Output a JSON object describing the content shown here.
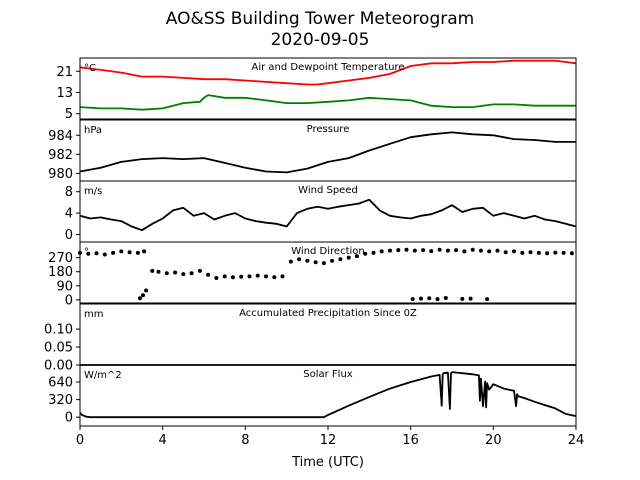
{
  "figure": {
    "title_line1": "AO&SS Building Tower Meteorogram",
    "title_line2": "2020-09-05",
    "xlabel": "Time (UTC)",
    "x_ticks": [
      "0",
      "4",
      "8",
      "12",
      "16",
      "20",
      "24"
    ],
    "xlim": [
      0,
      24
    ]
  },
  "chart_data": [
    {
      "type": "line",
      "title": "Air and Dewpoint Temperature",
      "unit_label": "°C",
      "ylim": [
        3,
        26
      ],
      "y_ticks": [
        5,
        13,
        21
      ],
      "series": [
        {
          "color": "#ff0000",
          "x": [
            0,
            0.5,
            1,
            2,
            3,
            4,
            5,
            6,
            7,
            8,
            9,
            10,
            11,
            11.5,
            12,
            13,
            14,
            15,
            16,
            17,
            18,
            19,
            20,
            21,
            22,
            23,
            23.5,
            24
          ],
          "y": [
            22.5,
            22,
            21.5,
            20.5,
            19,
            19,
            18.5,
            18,
            18,
            17.5,
            17,
            16.5,
            16,
            16,
            16.5,
            17.5,
            18.5,
            20,
            23,
            24,
            24,
            24.5,
            24.5,
            25,
            25,
            25,
            24.5,
            24
          ]
        },
        {
          "color": "#008000",
          "x": [
            0,
            1,
            2,
            3,
            4,
            5,
            5.8,
            6,
            6.2,
            7,
            8,
            9,
            10,
            11,
            12,
            13,
            14,
            15,
            16,
            17,
            18,
            19,
            20,
            21,
            22,
            23,
            24
          ],
          "y": [
            7.5,
            7,
            7,
            6.5,
            7,
            9,
            9.5,
            11,
            12,
            11,
            11,
            10,
            9,
            9,
            9.5,
            10,
            11,
            10.5,
            10,
            8,
            7.5,
            7.5,
            8.5,
            8.5,
            8,
            8,
            8
          ]
        }
      ]
    },
    {
      "type": "line",
      "title": "Pressure",
      "unit_label": "hPa",
      "ylim": [
        979.2,
        985.6
      ],
      "y_ticks": [
        980,
        982,
        984
      ],
      "series": [
        {
          "color": "#000000",
          "x": [
            0,
            1,
            2,
            3,
            4,
            5,
            6,
            7,
            8,
            9,
            10,
            11,
            12,
            13,
            14,
            15,
            16,
            17,
            18,
            19,
            20,
            21,
            22,
            23,
            24
          ],
          "y": [
            980.2,
            980.6,
            981.2,
            981.5,
            981.6,
            981.5,
            981.6,
            981.1,
            980.6,
            980.2,
            980.1,
            980.5,
            981.2,
            981.6,
            982.4,
            983.1,
            983.8,
            984.1,
            984.3,
            984.1,
            984,
            983.6,
            983.5,
            983.3,
            983.3
          ]
        }
      ]
    },
    {
      "type": "line",
      "title": "Wind Speed",
      "unit_label": "m/s",
      "ylim": [
        -1.4,
        10
      ],
      "y_ticks": [
        0,
        4,
        8
      ],
      "series": [
        {
          "color": "#000000",
          "x": [
            0,
            0.5,
            1,
            1.5,
            2,
            2.5,
            3,
            3.5,
            4,
            4.5,
            5,
            5.5,
            6,
            6.5,
            7,
            7.5,
            8,
            8.5,
            9,
            9.5,
            10,
            10.5,
            11,
            11.5,
            12,
            12.5,
            13,
            13.5,
            14,
            14.5,
            15,
            15.5,
            16,
            16.5,
            17,
            17.5,
            18,
            18.5,
            19,
            19.5,
            20,
            20.5,
            21,
            21.5,
            22,
            22.5,
            23,
            23.5,
            24
          ],
          "y": [
            3.5,
            3,
            3.2,
            2.8,
            2.5,
            1.5,
            0.8,
            2,
            3,
            4.5,
            5,
            3.5,
            4,
            2.8,
            3.5,
            4,
            3,
            2.5,
            2.2,
            2,
            1.5,
            4,
            4.8,
            5.2,
            4.8,
            5.2,
            5.5,
            5.8,
            6.5,
            4.5,
            3.5,
            3.2,
            3,
            3.5,
            3.8,
            4.5,
            5.5,
            4.2,
            4.8,
            5,
            3.5,
            4,
            3.5,
            3,
            3.5,
            2.8,
            2.5,
            2,
            1.5
          ]
        }
      ]
    },
    {
      "type": "scatter",
      "title": "Wind Direction",
      "unit_label": "°",
      "ylim": [
        -20,
        370
      ],
      "y_ticks": [
        0,
        90,
        180,
        270
      ],
      "series": [
        {
          "color": "#000000",
          "x": [
            0,
            0.4,
            0.8,
            1.2,
            1.6,
            2,
            2.4,
            2.8,
            3.1,
            3.5,
            3.8,
            4.2,
            4.6,
            5,
            5.4,
            5.8,
            6.2,
            6.6,
            7,
            7.4,
            7.8,
            8.2,
            8.6,
            9,
            9.4,
            9.8,
            10.2,
            10.6,
            11,
            11.4,
            11.8,
            12.2,
            12.6,
            13,
            13.4,
            13.8,
            14.2,
            14.6,
            15,
            15.4,
            15.8,
            16.2,
            16.6,
            17,
            17.4,
            17.8,
            18.2,
            18.6,
            19,
            19.4,
            19.8,
            20.2,
            20.6,
            21,
            21.4,
            21.8,
            22.2,
            22.6,
            23,
            23.4,
            23.8,
            2.9,
            3.05,
            3.2,
            16.1,
            16.5,
            16.9,
            17.3,
            17.7,
            18.5,
            18.9,
            19.7
          ],
          "y": [
            300,
            295,
            298,
            290,
            300,
            310,
            305,
            300,
            310,
            185,
            180,
            170,
            175,
            165,
            170,
            185,
            160,
            140,
            150,
            145,
            148,
            150,
            155,
            150,
            145,
            150,
            245,
            260,
            250,
            240,
            235,
            250,
            260,
            270,
            280,
            295,
            300,
            310,
            315,
            318,
            320,
            315,
            318,
            312,
            320,
            315,
            318,
            310,
            320,
            315,
            310,
            315,
            305,
            310,
            300,
            305,
            300,
            298,
            302,
            300,
            298,
            10,
            30,
            60,
            5,
            8,
            10,
            5,
            12,
            6,
            8,
            5
          ]
        }
      ]
    },
    {
      "type": "line",
      "title": "Accumulated Precipitation Since 0Z",
      "unit_label": "mm",
      "ylim": [
        0,
        0.17
      ],
      "y_ticks": [
        0.0,
        0.05,
        0.1
      ],
      "y_tick_labels": [
        "0.00",
        "0.05",
        "0.10"
      ],
      "series": [
        {
          "color": "#000000",
          "x": [
            0,
            24
          ],
          "y": [
            0,
            0
          ]
        }
      ]
    },
    {
      "type": "line",
      "title": "Solar Flux",
      "unit_label": "W/m^2",
      "ylim": [
        -160,
        950
      ],
      "y_ticks": [
        0,
        320,
        640
      ],
      "series": [
        {
          "color": "#000000",
          "x": [
            0,
            0.1,
            0.3,
            0.5,
            1,
            2,
            4,
            6,
            8,
            10,
            11,
            11.8,
            12,
            13,
            14,
            15,
            16,
            17,
            17.4,
            17.5,
            17.55,
            17.6,
            17.8,
            17.9,
            17.95,
            18,
            18.5,
            19,
            19.3,
            19.35,
            19.4,
            19.5,
            19.6,
            19.65,
            19.7,
            19.8,
            20,
            20.5,
            21,
            21.1,
            21.15,
            21.2,
            21.5,
            22,
            22.5,
            23,
            23.5,
            24
          ],
          "y": [
            80,
            40,
            10,
            0,
            0,
            0,
            0,
            0,
            0,
            0,
            0,
            0,
            40,
            210,
            370,
            520,
            640,
            740,
            770,
            210,
            780,
            800,
            810,
            150,
            800,
            820,
            800,
            780,
            760,
            300,
            700,
            200,
            650,
            180,
            620,
            500,
            600,
            520,
            480,
            200,
            420,
            380,
            350,
            280,
            220,
            160,
            60,
            20
          ]
        }
      ]
    }
  ]
}
